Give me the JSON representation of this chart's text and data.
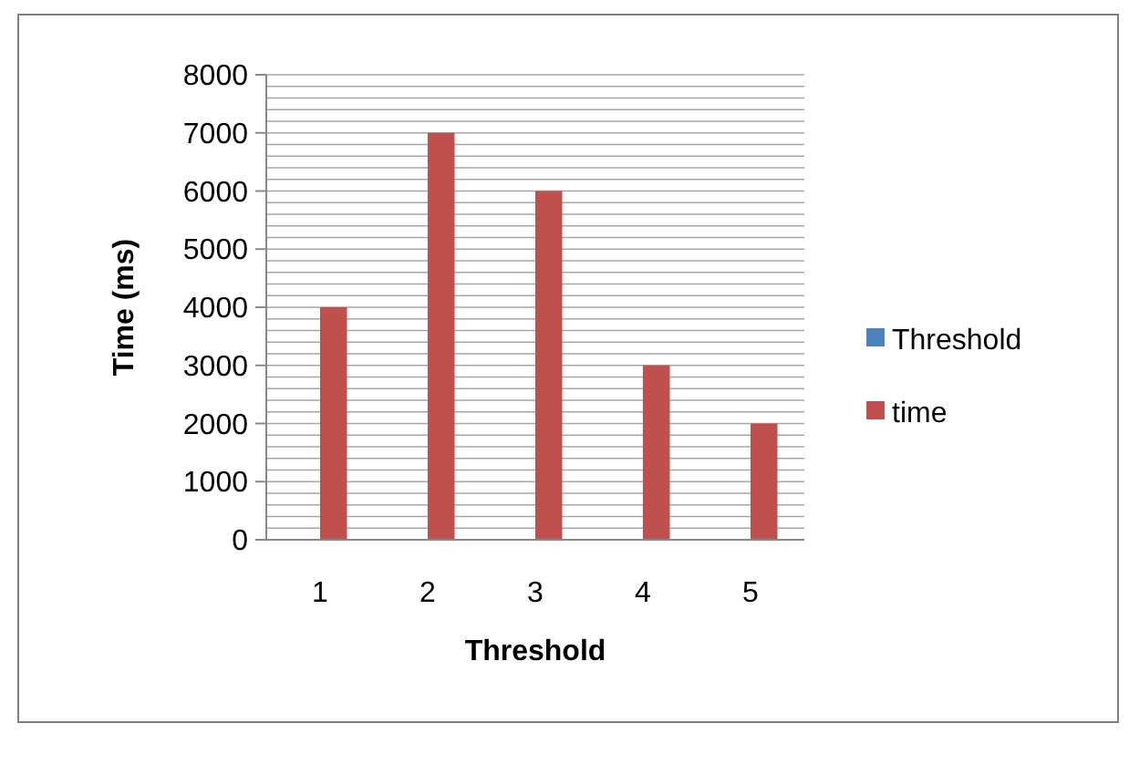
{
  "chart_data": {
    "type": "bar",
    "xlabel": "Threshold",
    "ylabel": "Time (ms)",
    "categories": [
      "1",
      "2",
      "3",
      "4",
      "5"
    ],
    "series": [
      {
        "name": "Threshold",
        "color": "#4f81bd",
        "values": [
          null,
          null,
          null,
          null,
          null
        ]
      },
      {
        "name": "time",
        "color": "#c0504d",
        "values": [
          4000,
          7000,
          6000,
          3000,
          2000
        ]
      }
    ],
    "ylim": [
      0,
      8000
    ],
    "yticks": [
      0,
      {
        "value": 200,
        "label": null
      },
      {
        "value": 400,
        "label": null
      },
      {
        "value": 600,
        "label": null
      },
      {
        "value": 800,
        "label": null
      },
      1000,
      {
        "value": 1200,
        "label": null
      },
      {
        "value": 1400,
        "label": null
      },
      {
        "value": 1600,
        "label": null
      },
      {
        "value": 1800,
        "label": null
      },
      2000,
      {
        "value": 2200,
        "label": null
      },
      {
        "value": 2400,
        "label": null
      },
      {
        "value": 2600,
        "label": null
      },
      {
        "value": 2800,
        "label": null
      },
      3000,
      {
        "value": 3200,
        "label": null
      },
      {
        "value": 3400,
        "label": null
      },
      {
        "value": 3600,
        "label": null
      },
      {
        "value": 3800,
        "label": null
      },
      4000,
      {
        "value": 4200,
        "label": null
      },
      {
        "value": 4400,
        "label": null
      },
      {
        "value": 4600,
        "label": null
      },
      {
        "value": 4800,
        "label": null
      },
      5000,
      {
        "value": 5200,
        "label": null
      },
      {
        "value": 5400,
        "label": null
      },
      {
        "value": 5600,
        "label": null
      },
      {
        "value": 5800,
        "label": null
      },
      6000,
      {
        "value": 6200,
        "label": null
      },
      {
        "value": 6400,
        "label": null
      },
      {
        "value": 6600,
        "label": null
      },
      {
        "value": 6800,
        "label": null
      },
      7000,
      {
        "value": 7200,
        "label": null
      },
      {
        "value": 7400,
        "label": null
      },
      {
        "value": 7600,
        "label": null
      },
      {
        "value": 7800,
        "label": null
      },
      8000
    ],
    "grid": "y",
    "legend": "right"
  }
}
